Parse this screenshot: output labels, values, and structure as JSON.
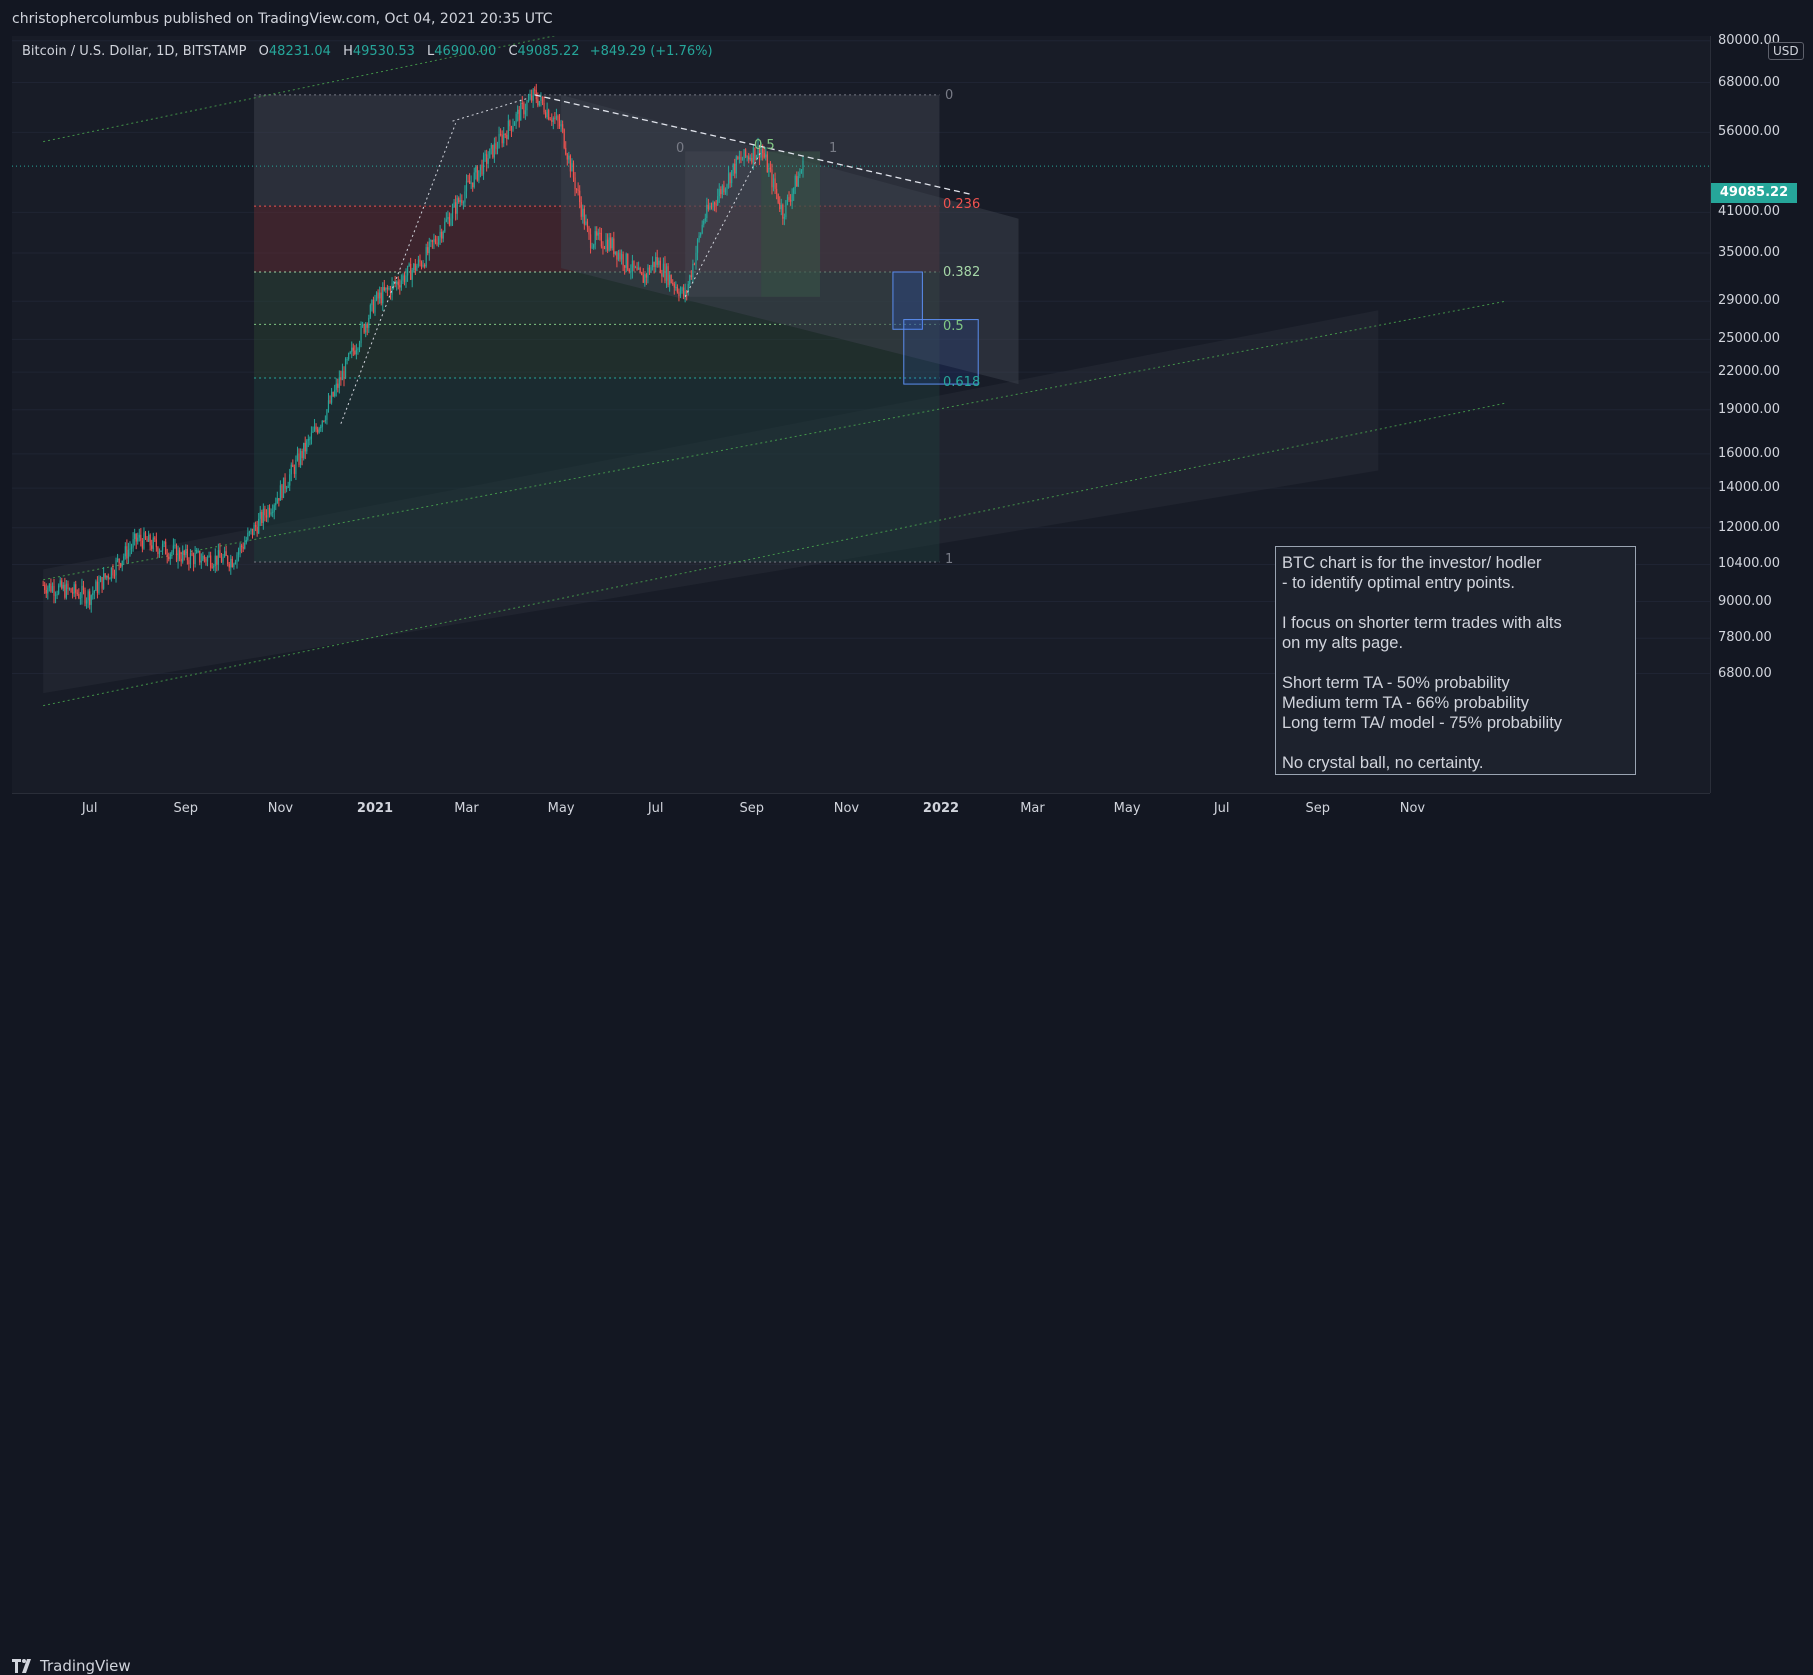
{
  "header": {
    "published": "christophercolumbus published on TradingView.com, Oct 04, 2021 20:35 UTC"
  },
  "legend": {
    "symbol": "Bitcoin / U.S. Dollar, 1D, BITSTAMP",
    "open_key": "O",
    "open": "48231.04",
    "high_key": "H",
    "high": "49530.53",
    "low_key": "L",
    "low": "46900.00",
    "close_key": "C",
    "close": "49085.22",
    "change": "+849.29 (+1.76%)"
  },
  "price_axis": {
    "currency": "USD",
    "last_price": "49085.22",
    "labels": [
      "80000.00",
      "68000.00",
      "56000.00",
      "41000.00",
      "35000.00",
      "29000.00",
      "25000.00",
      "22000.00",
      "19000.00",
      "16000.00",
      "14000.00",
      "12000.00",
      "10400.00",
      "9000.00",
      "7800.00",
      "6800.00"
    ]
  },
  "time_axis": {
    "labels": [
      "Jul",
      "Sep",
      "Nov",
      "2021",
      "Mar",
      "May",
      "Jul",
      "Sep",
      "Nov",
      "2022",
      "Mar",
      "May",
      "Jul",
      "Sep",
      "Nov"
    ]
  },
  "fib_levels": {
    "l0": "0",
    "l236": "0.236",
    "l382": "0.382",
    "l5": "0.5",
    "l618": "0.618",
    "l1": "1",
    "ext0": "0",
    "ext05": "0.5",
    "ext1": "1"
  },
  "note": {
    "lines": [
      "BTC chart is for the investor/ hodler",
      "- to identify optimal entry points.",
      "",
      "I focus on shorter term trades with alts",
      "on my alts page.",
      "",
      "Short term TA - 50% probability",
      "Medium term TA - 66% probability",
      "Long term TA/ model - 75% probability",
      "",
      "No crystal ball, no certainty."
    ]
  },
  "footer": {
    "brand": "TradingView"
  },
  "colors": {
    "up": "#26a69a",
    "down": "#ef5350",
    "bg": "#181c27",
    "fib_red": "#ef5350",
    "fib_green": "#26a69a",
    "fib_blue": "#2962ff"
  },
  "chart_data": {
    "type": "candlestick",
    "title": "Bitcoin / U.S. Dollar, 1D, BITSTAMP",
    "y_scale": "log",
    "ylim": [
      6200,
      82000
    ],
    "x_range": [
      "2020-06-01",
      "2022-12-31"
    ],
    "monthly_path": [
      {
        "date": "2020-06-01",
        "price": 9600
      },
      {
        "date": "2020-07-01",
        "price": 9200
      },
      {
        "date": "2020-08-01",
        "price": 11500
      },
      {
        "date": "2020-09-01",
        "price": 10700
      },
      {
        "date": "2020-10-01",
        "price": 10600
      },
      {
        "date": "2020-11-01",
        "price": 13800
      },
      {
        "date": "2020-12-01",
        "price": 19000
      },
      {
        "date": "2021-01-01",
        "price": 29000
      },
      {
        "date": "2021-02-01",
        "price": 34000
      },
      {
        "date": "2021-03-01",
        "price": 45000
      },
      {
        "date": "2021-04-01",
        "price": 59000
      },
      {
        "date": "2021-04-14",
        "price": 64800
      },
      {
        "date": "2021-05-01",
        "price": 57000
      },
      {
        "date": "2021-05-19",
        "price": 37000
      },
      {
        "date": "2021-06-01",
        "price": 36500
      },
      {
        "date": "2021-06-22",
        "price": 31500
      },
      {
        "date": "2021-07-01",
        "price": 34000
      },
      {
        "date": "2021-07-20",
        "price": 29500
      },
      {
        "date": "2021-08-01",
        "price": 40000
      },
      {
        "date": "2021-08-23",
        "price": 50000
      },
      {
        "date": "2021-09-07",
        "price": 52600
      },
      {
        "date": "2021-09-21",
        "price": 41000
      },
      {
        "date": "2021-10-04",
        "price": 49085
      }
    ],
    "fibonacci_retracement": {
      "from": {
        "date": "2020-10-15",
        "price": 10500
      },
      "to": {
        "date": "2021-04-14",
        "price": 64800
      },
      "levels": [
        {
          "ratio": "0",
          "price": 64800
        },
        {
          "ratio": "0.236",
          "price": 42000
        },
        {
          "ratio": "0.382",
          "price": 32500
        },
        {
          "ratio": "0.5",
          "price": 26500
        },
        {
          "ratio": "0.618",
          "price": 21500
        },
        {
          "ratio": "1",
          "price": 10500
        }
      ]
    },
    "last_price": 49085.22
  }
}
